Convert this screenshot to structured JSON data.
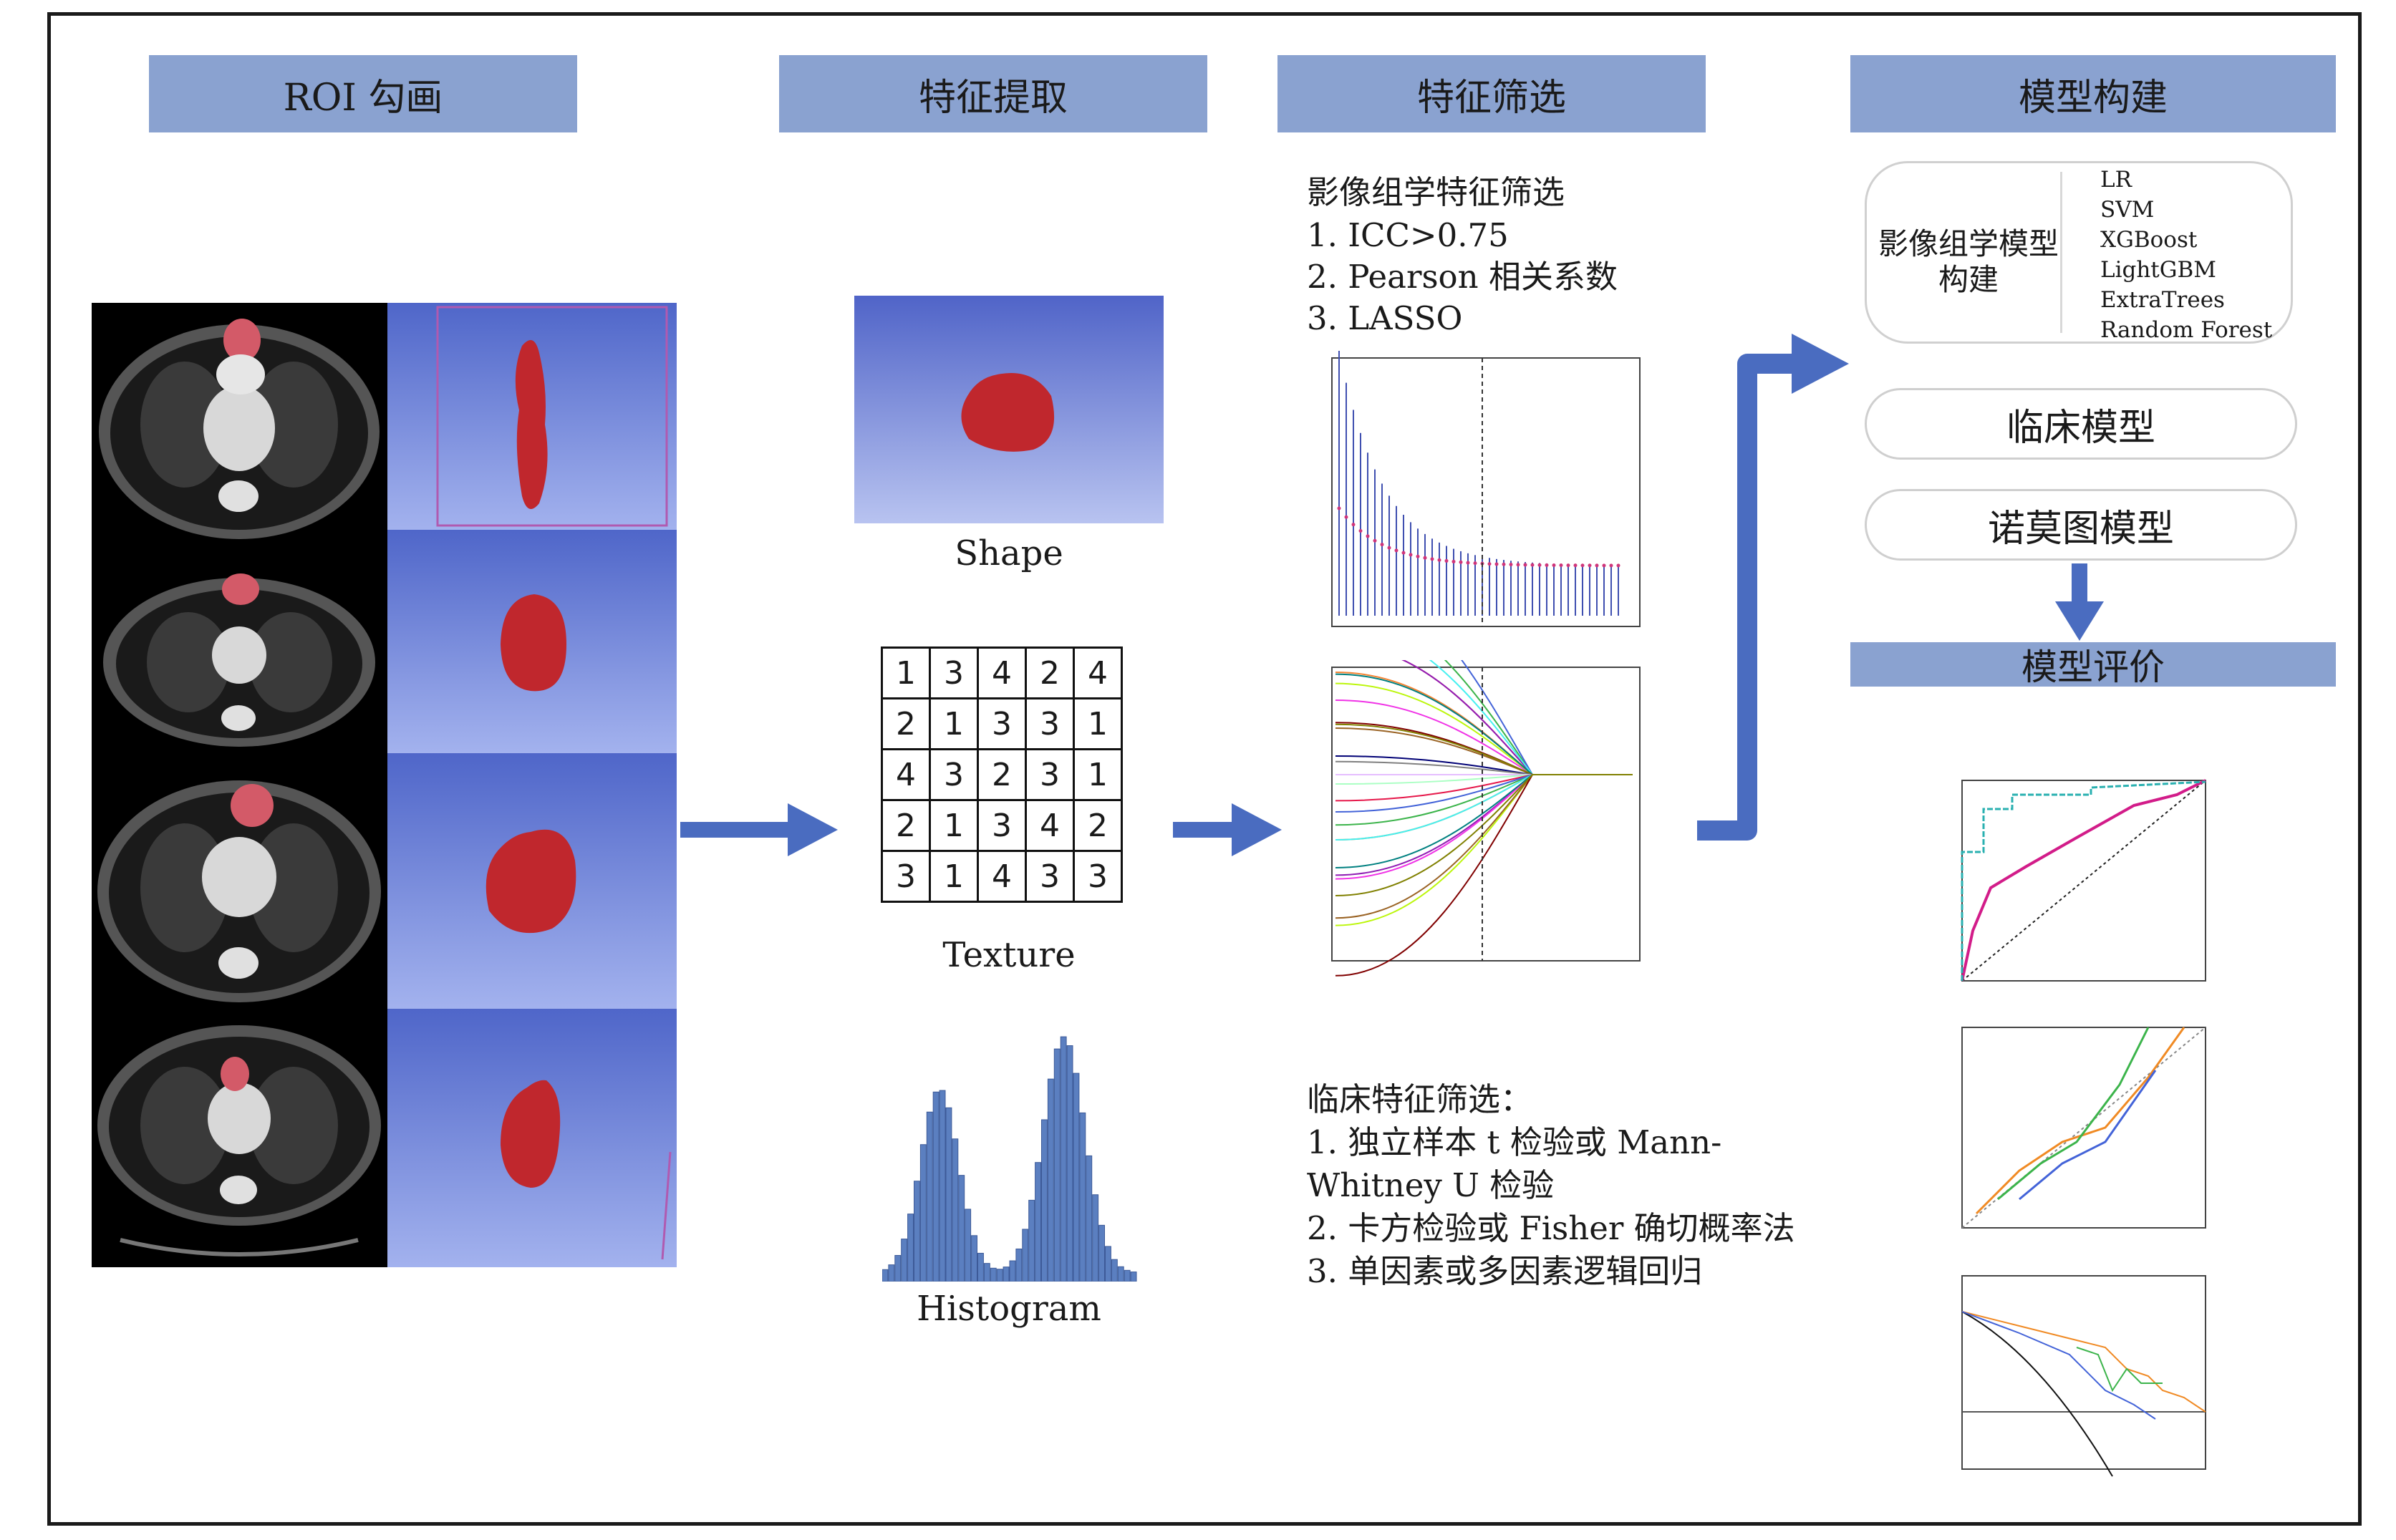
{
  "headers": {
    "roi": "ROI 勾画",
    "extraction": "特征提取",
    "selection": "特征筛选",
    "model_build": "模型构建",
    "model_eval": "模型评价"
  },
  "extraction": {
    "shape_label": "Shape",
    "texture_label": "Texture",
    "histogram_label": "Histogram",
    "texture_matrix": [
      [
        1,
        3,
        4,
        2,
        4
      ],
      [
        2,
        1,
        3,
        3,
        1
      ],
      [
        4,
        3,
        2,
        3,
        1
      ],
      [
        2,
        1,
        3,
        4,
        2
      ],
      [
        3,
        1,
        4,
        3,
        3
      ]
    ]
  },
  "selection": {
    "radiomics_lines": [
      "影像组学特征筛选",
      "1. ICC>0.75",
      "2. Pearson 相关系数",
      "3. LASSO"
    ],
    "clinical_lines": [
      "临床特征筛选：",
      "1. 独立样本 t 检验或 Mann-",
      "Whitney  U 检验",
      "2. 卡方检验或 Fisher 确切概率法",
      "3. 单因素或多因素逻辑回归"
    ]
  },
  "model_build": {
    "radiomics_label_line1": "影像组学模型",
    "radiomics_label_line2": "构建",
    "algorithms": [
      "LR",
      "SVM",
      "XGBoost",
      "LightGBM",
      "ExtraTrees",
      "Random Forest"
    ],
    "clinical_model": "临床模型",
    "nomogram_model": "诺莫图模型"
  },
  "colors": {
    "header_bg": "#8aa2d0",
    "arrow": "#4a6cc0",
    "lesion": "#c0272d",
    "render_bg": "#5d72cf"
  }
}
